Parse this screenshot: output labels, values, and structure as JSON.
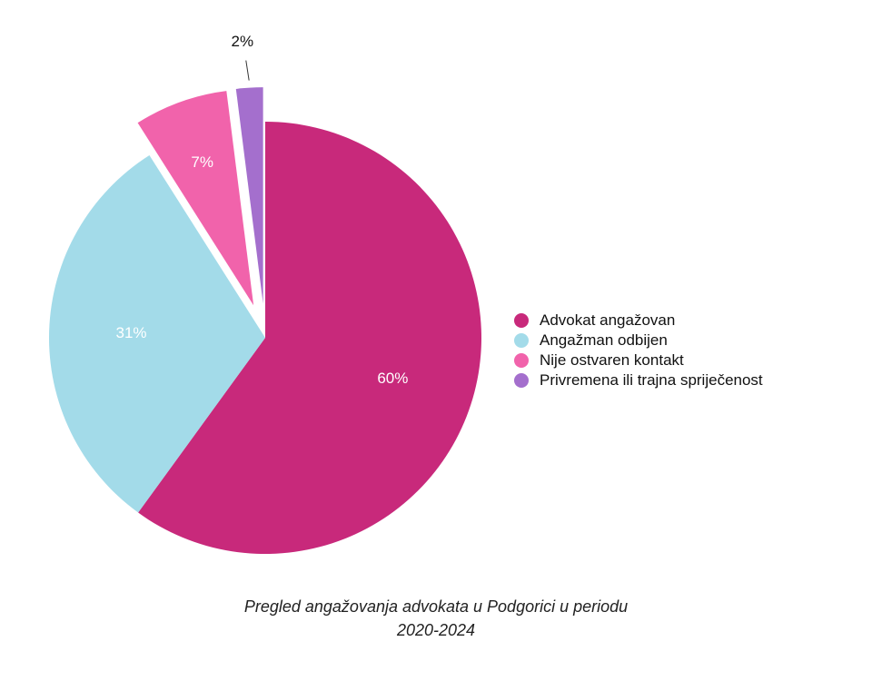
{
  "chart_data": {
    "type": "pie",
    "title": "Pregled angažovanja advokata u Podgorici u periodu 2020-2024",
    "slices": [
      {
        "label": "Advokat angažovan",
        "value": 60,
        "display": "60%",
        "color": "#c8297b",
        "exploded": false,
        "label_inside": true
      },
      {
        "label": "Angažman odbijen",
        "value": 31,
        "display": "31%",
        "color": "#a3dbe9",
        "exploded": false,
        "label_inside": true
      },
      {
        "label": "Nije ostvaren kontakt",
        "value": 7,
        "display": "7%",
        "color": "#f163ab",
        "exploded": true,
        "label_inside": true
      },
      {
        "label": "Privremena ili trajna spriječenost",
        "value": 2,
        "display": "2%",
        "color": "#a46fcd",
        "exploded": true,
        "label_inside": false
      }
    ],
    "legend_position": "right"
  },
  "caption": {
    "line1": "Pregled angažovanja advokata u Podgorici u periodu",
    "line2": "2020-2024"
  }
}
